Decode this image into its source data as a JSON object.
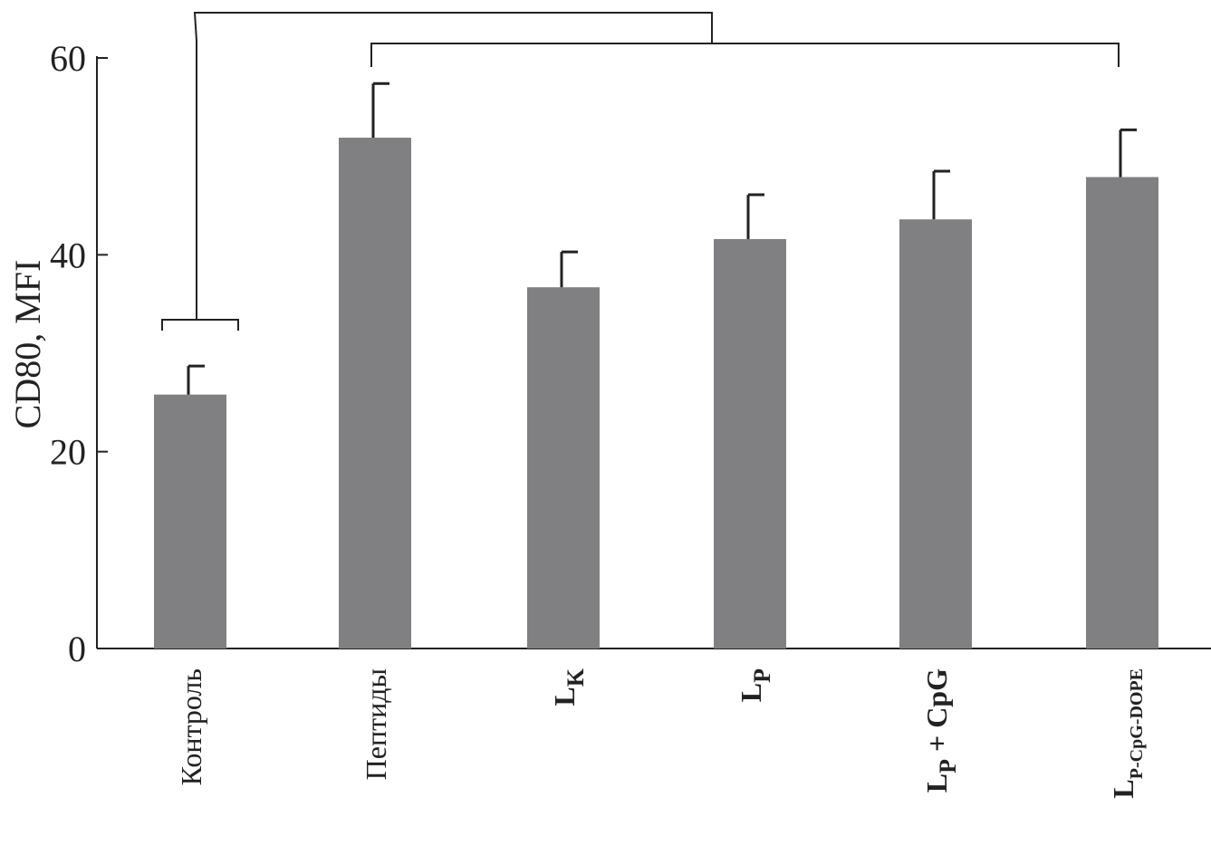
{
  "chart_data": {
    "type": "bar",
    "ylabel": "CD80, MFI",
    "ylim": [
      0,
      60
    ],
    "yticks": [
      "0",
      "20",
      "40",
      "60"
    ],
    "grid": false,
    "legend": "none",
    "bar_color": "#808083",
    "categories": [
      {
        "main": "Контроль",
        "sub": ""
      },
      {
        "main": "Пептиды",
        "sub": ""
      },
      {
        "main": "L",
        "sub": "K"
      },
      {
        "main": "L",
        "sub": "P"
      },
      {
        "main": "L",
        "sub": "P",
        "suffix": " + CpG"
      },
      {
        "main": "L",
        "sub": "P-CpG-DOPE"
      }
    ],
    "values": [
      25.8,
      51.9,
      36.7,
      41.6,
      43.6,
      47.9
    ],
    "errors": [
      2.9,
      5.5,
      3.6,
      4.5,
      4.9,
      4.8
    ],
    "brackets": [
      {
        "from": 0,
        "to": [
          1,
          5
        ]
      }
    ]
  }
}
